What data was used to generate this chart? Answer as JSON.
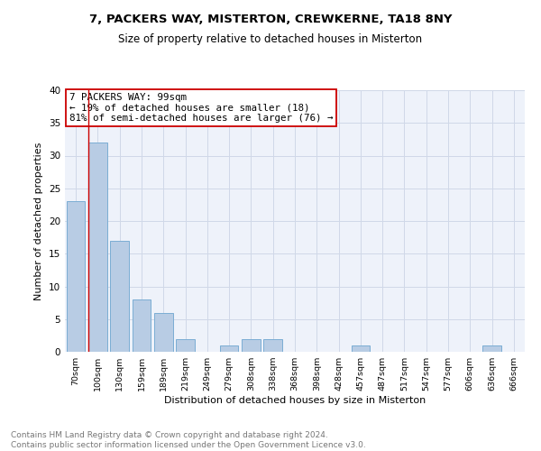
{
  "title1": "7, PACKERS WAY, MISTERTON, CREWKERNE, TA18 8NY",
  "title2": "Size of property relative to detached houses in Misterton",
  "xlabel": "Distribution of detached houses by size in Misterton",
  "ylabel": "Number of detached properties",
  "footer": "Contains HM Land Registry data © Crown copyright and database right 2024.\nContains public sector information licensed under the Open Government Licence v3.0.",
  "categories": [
    "70sqm",
    "100sqm",
    "130sqm",
    "159sqm",
    "189sqm",
    "219sqm",
    "249sqm",
    "279sqm",
    "308sqm",
    "338sqm",
    "368sqm",
    "398sqm",
    "428sqm",
    "457sqm",
    "487sqm",
    "517sqm",
    "547sqm",
    "577sqm",
    "606sqm",
    "636sqm",
    "666sqm"
  ],
  "values": [
    23,
    32,
    17,
    8,
    6,
    2,
    0,
    1,
    2,
    2,
    0,
    0,
    0,
    1,
    0,
    0,
    0,
    0,
    0,
    1,
    0
  ],
  "bar_color": "#b8cce4",
  "bar_edge_color": "#7badd4",
  "annotation_box_text": "7 PACKERS WAY: 99sqm\n← 19% of detached houses are smaller (18)\n81% of semi-detached houses are larger (76) →",
  "ylim": [
    0,
    40
  ],
  "yticks": [
    0,
    5,
    10,
    15,
    20,
    25,
    30,
    35,
    40
  ],
  "grid_color": "#d0d8e8",
  "bg_color": "#eef2fa",
  "red_line_color": "#cc0000",
  "box_edge_color": "#cc0000",
  "title1_fontsize": 9.5,
  "title2_fontsize": 8.5,
  "xlabel_fontsize": 8,
  "ylabel_fontsize": 8,
  "footer_fontsize": 6.5,
  "annotation_fontsize": 7.8
}
